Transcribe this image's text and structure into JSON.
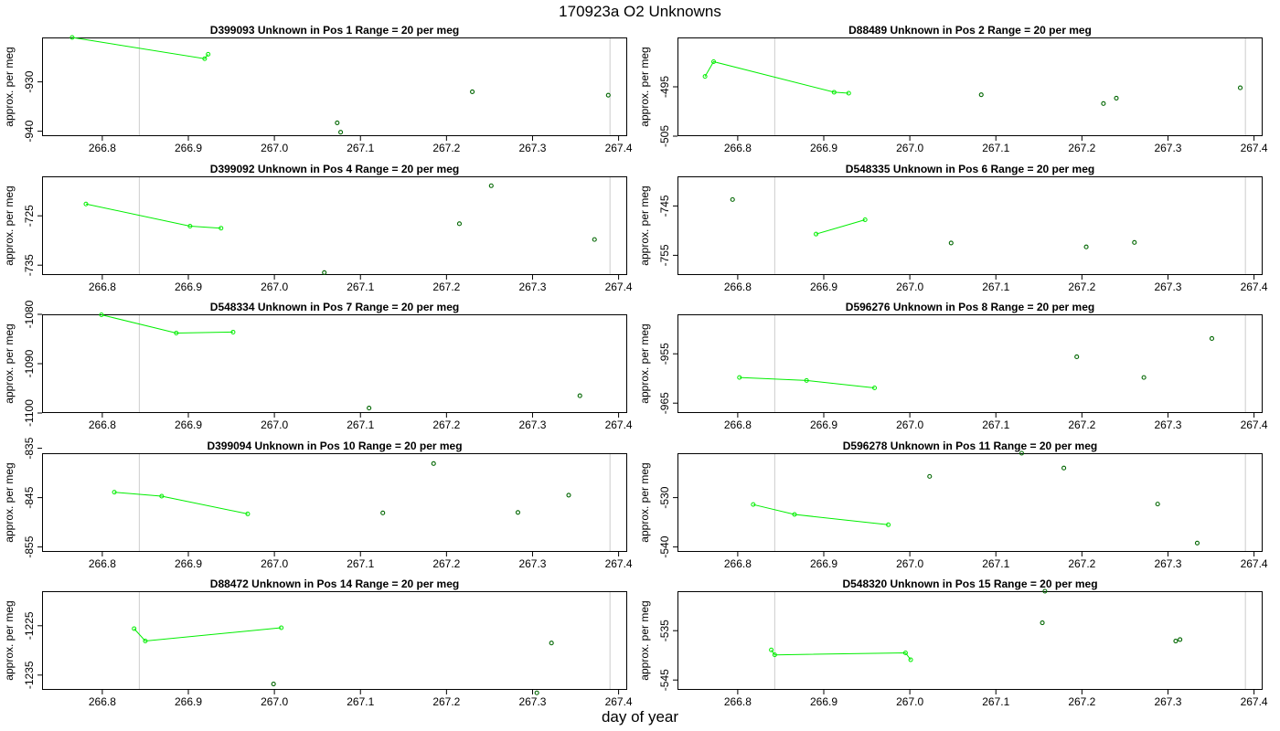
{
  "title": "170923a  O2 Unknowns",
  "x_label": "day of year",
  "y_label": "approx. per meg",
  "colors": {
    "line": "#00ee00",
    "point_new": "#006600",
    "ref_line": "#cccccc",
    "axis": "#000000"
  },
  "chart_data": [
    {
      "type": "scatter",
      "title": "D399093    Unknown in Pos 1          Range = 20 per meg",
      "xlim": [
        266.73,
        267.41
      ],
      "ylim": [
        -941,
        -921
      ],
      "xticks": [
        "266.8",
        "266.9",
        "267.0",
        "267.1",
        "267.2",
        "267.3",
        "267.4"
      ],
      "yticks": [
        "-930",
        "-940"
      ],
      "ref_lines": [
        266.843,
        267.39
      ],
      "line_series": {
        "x": [
          266.765,
          266.919,
          266.923
        ],
        "y": [
          -921.0,
          -925.3,
          -924.4
        ]
      },
      "point_series": {
        "x": [
          267.073,
          267.077,
          267.23,
          267.388
        ],
        "y": [
          -938.3,
          -940.2,
          -932.0,
          -932.7
        ]
      }
    },
    {
      "type": "scatter",
      "title": "D88489    Unknown in Pos 2          Range = 20 per meg",
      "xlim": [
        266.73,
        267.41
      ],
      "ylim": [
        -505,
        -485
      ],
      "xticks": [
        "266.8",
        "266.9",
        "267.0",
        "267.1",
        "267.2",
        "267.3",
        "267.4"
      ],
      "yticks": [
        "-495",
        "-505"
      ],
      "ref_lines": [
        266.843,
        267.39
      ],
      "line_series": {
        "x": [
          266.762,
          266.772,
          266.912,
          266.929
        ],
        "y": [
          -492.9,
          -489.9,
          -496.1,
          -496.3
        ]
      },
      "point_series": {
        "x": [
          267.083,
          267.225,
          267.24,
          267.384
        ],
        "y": [
          -496.6,
          -498.4,
          -497.3,
          -495.2
        ]
      }
    },
    {
      "type": "scatter",
      "title": "D399092    Unknown in Pos 4          Range = 20 per meg",
      "xlim": [
        266.73,
        267.41
      ],
      "ylim": [
        -737,
        -717
      ],
      "xticks": [
        "266.8",
        "266.9",
        "267.0",
        "267.1",
        "267.2",
        "267.3",
        "267.4"
      ],
      "yticks": [
        "-725",
        "-735"
      ],
      "ref_lines": [
        266.843,
        267.39
      ],
      "line_series": {
        "x": [
          266.781,
          266.902,
          266.938
        ],
        "y": [
          -722.6,
          -727.1,
          -727.5
        ]
      },
      "point_series": {
        "x": [
          267.058,
          267.215,
          267.252,
          267.372
        ],
        "y": [
          -736.5,
          -726.6,
          -718.9,
          -729.8
        ]
      }
    },
    {
      "type": "scatter",
      "title": "D548335    Unknown in Pos 6          Range = 20 per meg",
      "xlim": [
        266.73,
        267.41
      ],
      "ylim": [
        -759,
        -739
      ],
      "xticks": [
        "266.8",
        "266.9",
        "267.0",
        "267.1",
        "267.2",
        "267.3",
        "267.4"
      ],
      "yticks": [
        "-745",
        "-755"
      ],
      "ref_lines": [
        266.843,
        267.39
      ],
      "line_series": {
        "x": [
          266.891,
          266.948
        ],
        "y": [
          -750.7,
          -747.8
        ]
      },
      "point_series": {
        "x": [
          266.794,
          267.048,
          267.205,
          267.261
        ],
        "y": [
          -743.7,
          -752.5,
          -753.3,
          -752.4
        ]
      }
    },
    {
      "type": "scatter",
      "title": "D548334    Unknown in Pos 7          Range = 20 per meg",
      "xlim": [
        266.73,
        267.41
      ],
      "ylim": [
        -1100,
        -1080
      ],
      "xticks": [
        "266.8",
        "266.9",
        "267.0",
        "267.1",
        "267.2",
        "267.3",
        "267.4"
      ],
      "yticks": [
        "-1080",
        "-1090",
        "-1100"
      ],
      "ref_lines": [
        266.843
      ],
      "line_series": {
        "x": [
          266.799,
          266.886,
          266.952
        ],
        "y": [
          -1080.1,
          -1083.8,
          -1083.6
        ]
      },
      "point_series": {
        "x": [
          267.11,
          267.355
        ],
        "y": [
          -1099.0,
          -1096.5
        ]
      }
    },
    {
      "type": "scatter",
      "title": "D596276    Unknown in Pos 8          Range = 20 per meg",
      "xlim": [
        266.73,
        267.41
      ],
      "ylim": [
        -967,
        -947
      ],
      "xticks": [
        "266.8",
        "266.9",
        "267.0",
        "267.1",
        "267.2",
        "267.3",
        "267.4"
      ],
      "yticks": [
        "-955",
        "-965"
      ],
      "ref_lines": [
        266.843,
        267.39
      ],
      "line_series": {
        "x": [
          266.802,
          266.88,
          266.959
        ],
        "y": [
          -959.8,
          -960.4,
          -961.9
        ]
      },
      "point_series": {
        "x": [
          267.194,
          267.272,
          267.351
        ],
        "y": [
          -955.6,
          -959.8,
          -951.9
        ]
      }
    },
    {
      "type": "scatter",
      "title": "D399094    Unknown in Pos 10          Range = 20 per meg",
      "xlim": [
        266.73,
        267.41
      ],
      "ylim": [
        -856,
        -836
      ],
      "xticks": [
        "266.8",
        "266.9",
        "267.0",
        "267.1",
        "267.2",
        "267.3",
        "267.4"
      ],
      "yticks": [
        "-835",
        "-845",
        "-855"
      ],
      "ref_lines": [
        266.843,
        267.39
      ],
      "line_series": {
        "x": [
          266.814,
          266.869,
          266.969
        ],
        "y": [
          -843.9,
          -844.7,
          -848.3
        ]
      },
      "point_series": {
        "x": [
          267.126,
          267.185,
          267.283,
          267.342
        ],
        "y": [
          -848.1,
          -838.1,
          -848.0,
          -844.5
        ]
      }
    },
    {
      "type": "scatter",
      "title": "D596278    Unknown in Pos 11          Range = 20 per meg",
      "xlim": [
        266.73,
        267.41
      ],
      "ylim": [
        -541,
        -521
      ],
      "xticks": [
        "266.8",
        "266.9",
        "267.0",
        "267.1",
        "267.2",
        "267.3",
        "267.4"
      ],
      "yticks": [
        "-530",
        "-540"
      ],
      "ref_lines": [
        266.843,
        267.39
      ],
      "line_series": {
        "x": [
          266.818,
          266.866,
          266.975
        ],
        "y": [
          -531.4,
          -533.4,
          -535.5
        ]
      },
      "point_series": {
        "x": [
          267.023,
          267.13,
          267.179,
          267.288,
          267.334
        ],
        "y": [
          -525.7,
          -521.0,
          -524.0,
          -531.3,
          -539.2
        ]
      }
    },
    {
      "type": "scatter",
      "title": "D88472    Unknown in Pos 14          Range = 20 per meg",
      "xlim": [
        266.73,
        267.41
      ],
      "ylim": [
        -1238,
        -1218
      ],
      "xticks": [
        "266.8",
        "266.9",
        "267.0",
        "267.1",
        "267.2",
        "267.3",
        "267.4"
      ],
      "yticks": [
        "-1225",
        "-1235"
      ],
      "ref_lines": [
        266.843,
        267.39
      ],
      "line_series": {
        "x": [
          266.837,
          266.85,
          267.008
        ],
        "y": [
          -1225.6,
          -1228.1,
          -1225.4
        ]
      },
      "point_series": {
        "x": [
          266.999,
          267.305,
          267.322
        ],
        "y": [
          -1236.8,
          -1238.6,
          -1228.5
        ]
      }
    },
    {
      "type": "scatter",
      "title": "D548320    Unknown in Pos 15          Range = 20 per meg",
      "xlim": [
        266.73,
        267.41
      ],
      "ylim": [
        -547,
        -527
      ],
      "xticks": [
        "266.8",
        "266.9",
        "267.0",
        "267.1",
        "267.2",
        "267.3",
        "267.4"
      ],
      "yticks": [
        "-535",
        "-545"
      ],
      "ref_lines": [
        266.843,
        267.39
      ],
      "line_series": {
        "x": [
          266.839,
          266.843,
          266.995,
          267.001
        ],
        "y": [
          -538.9,
          -539.9,
          -539.5,
          -540.9
        ]
      },
      "point_series": {
        "x": [
          267.154,
          267.157,
          267.309,
          267.314
        ],
        "y": [
          -533.4,
          -527.0,
          -537.1,
          -536.8
        ]
      }
    }
  ]
}
